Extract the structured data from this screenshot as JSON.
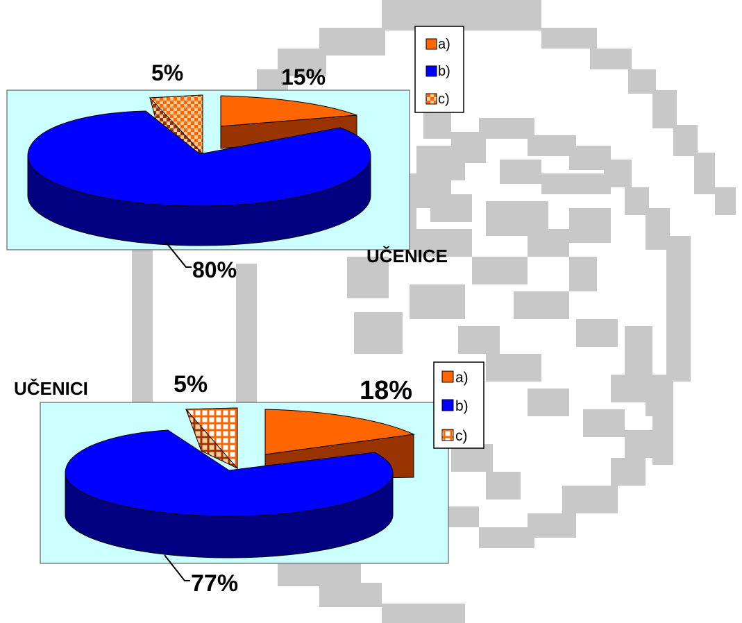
{
  "colors": {
    "plot_area": "#ccffff",
    "a_top": "#ff6600",
    "a_side": "#993300",
    "b_top": "#0000ff",
    "b_side": "#000080",
    "c_light": "#ffcc99",
    "c_dark": "#993300",
    "c_bright": "#ff6600",
    "background_pattern": "#c8c8c8"
  },
  "chart_data": [
    {
      "type": "pie",
      "style": "3d-exploded",
      "title": "UČENICE",
      "categories": [
        "a)",
        "b)",
        "c)"
      ],
      "values": [
        15,
        80,
        5
      ],
      "data_labels": [
        "15%",
        "80%",
        "5%"
      ],
      "legend": {
        "placement": "top-right",
        "entries": [
          "a)",
          "b)",
          "c)"
        ]
      }
    },
    {
      "type": "pie",
      "style": "3d-exploded",
      "title": "UČENICI",
      "categories": [
        "a)",
        "b)",
        "c)"
      ],
      "values": [
        18,
        77,
        5
      ],
      "data_labels": [
        "18%",
        "77%",
        "5%"
      ],
      "legend": {
        "placement": "top-right",
        "entries": [
          "a)",
          "b)",
          "c)"
        ]
      }
    }
  ]
}
